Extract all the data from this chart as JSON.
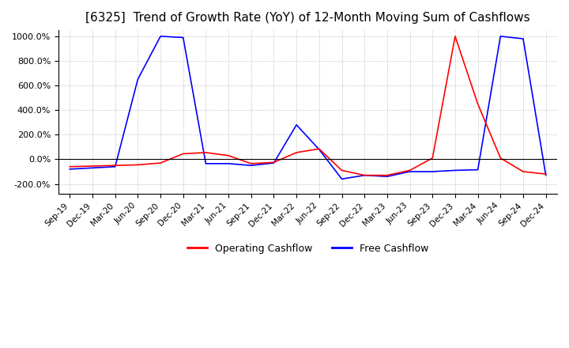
{
  "title": "[6325]  Trend of Growth Rate (YoY) of 12-Month Moving Sum of Cashflows",
  "title_fontsize": 11,
  "ylim": [
    -280,
    1050
  ],
  "yticks": [
    -200,
    0,
    200,
    400,
    600,
    800,
    1000
  ],
  "legend_labels": [
    "Operating Cashflow",
    "Free Cashflow"
  ],
  "line_colors": [
    "red",
    "blue"
  ],
  "background_color": "#ffffff",
  "grid_color": "#aaaaaa",
  "x_labels": [
    "Sep-19",
    "Dec-19",
    "Mar-20",
    "Jun-20",
    "Sep-20",
    "Dec-20",
    "Mar-21",
    "Jun-21",
    "Sep-21",
    "Dec-21",
    "Mar-22",
    "Jun-22",
    "Sep-22",
    "Dec-22",
    "Mar-23",
    "Jun-23",
    "Sep-23",
    "Dec-23",
    "Mar-24",
    "Jun-24",
    "Sep-24",
    "Dec-24"
  ],
  "operating_cashflow": [
    -60,
    -55,
    -50,
    -45,
    -30,
    45,
    55,
    30,
    -35,
    -25,
    55,
    85,
    -90,
    -130,
    -130,
    -90,
    10,
    1000,
    450,
    10,
    -100,
    -120
  ],
  "free_cashflow": [
    -80,
    -70,
    -60,
    650,
    1000,
    990,
    -35,
    -35,
    -50,
    -30,
    280,
    80,
    -160,
    -130,
    -140,
    -100,
    -100,
    -90,
    -85,
    1000,
    980,
    -130
  ]
}
